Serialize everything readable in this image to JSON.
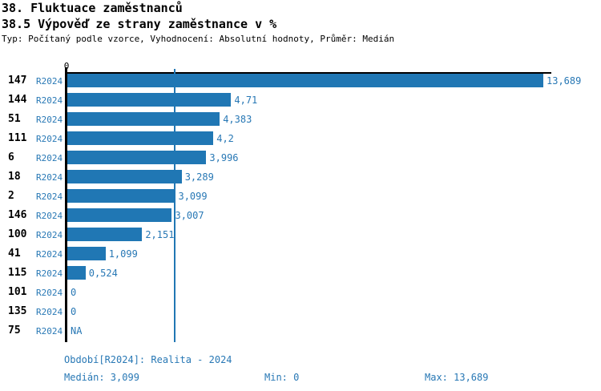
{
  "title1": "38. Fluktuace zaměstnanců",
  "title2": "38.5 Výpověď ze strany zaměstnance v %",
  "subtitle": "Typ: Počítaný podle vzorce, Vyhodnocení: Absolutní hodnoty, Průměr: Medián",
  "colors": {
    "bar": "#2077b4",
    "blue_text": "#2878b5",
    "axis": "#000000",
    "median_line": "#2077b4"
  },
  "axis": {
    "zero_label": "0"
  },
  "chart_data": {
    "type": "bar",
    "orientation": "horizontal",
    "title": "38.5 Výpověď ze strany zaměstnance v %",
    "categories": [
      "147",
      "144",
      "51",
      "111",
      "6",
      "18",
      "2",
      "146",
      "100",
      "41",
      "115",
      "101",
      "135",
      "75"
    ],
    "series_label": "R2024",
    "values": [
      13.689,
      4.71,
      4.383,
      4.2,
      3.996,
      3.289,
      3.099,
      3.007,
      2.151,
      1.099,
      0.524,
      0,
      0,
      null
    ],
    "value_labels": [
      "13,689",
      "4,71",
      "4,383",
      "4,2",
      "3,996",
      "3,289",
      "3,099",
      "3,007",
      "2,151",
      "1,099",
      "0,524",
      "0",
      "0",
      "NA"
    ],
    "xlim": [
      0,
      13.689
    ],
    "median": 3.099,
    "grid": false,
    "legend": false
  },
  "footer": {
    "period": "Období[R2024]: Realita - 2024",
    "median": "Medián: 3,099",
    "min": "Min: 0",
    "max": "Max: 13,689"
  }
}
